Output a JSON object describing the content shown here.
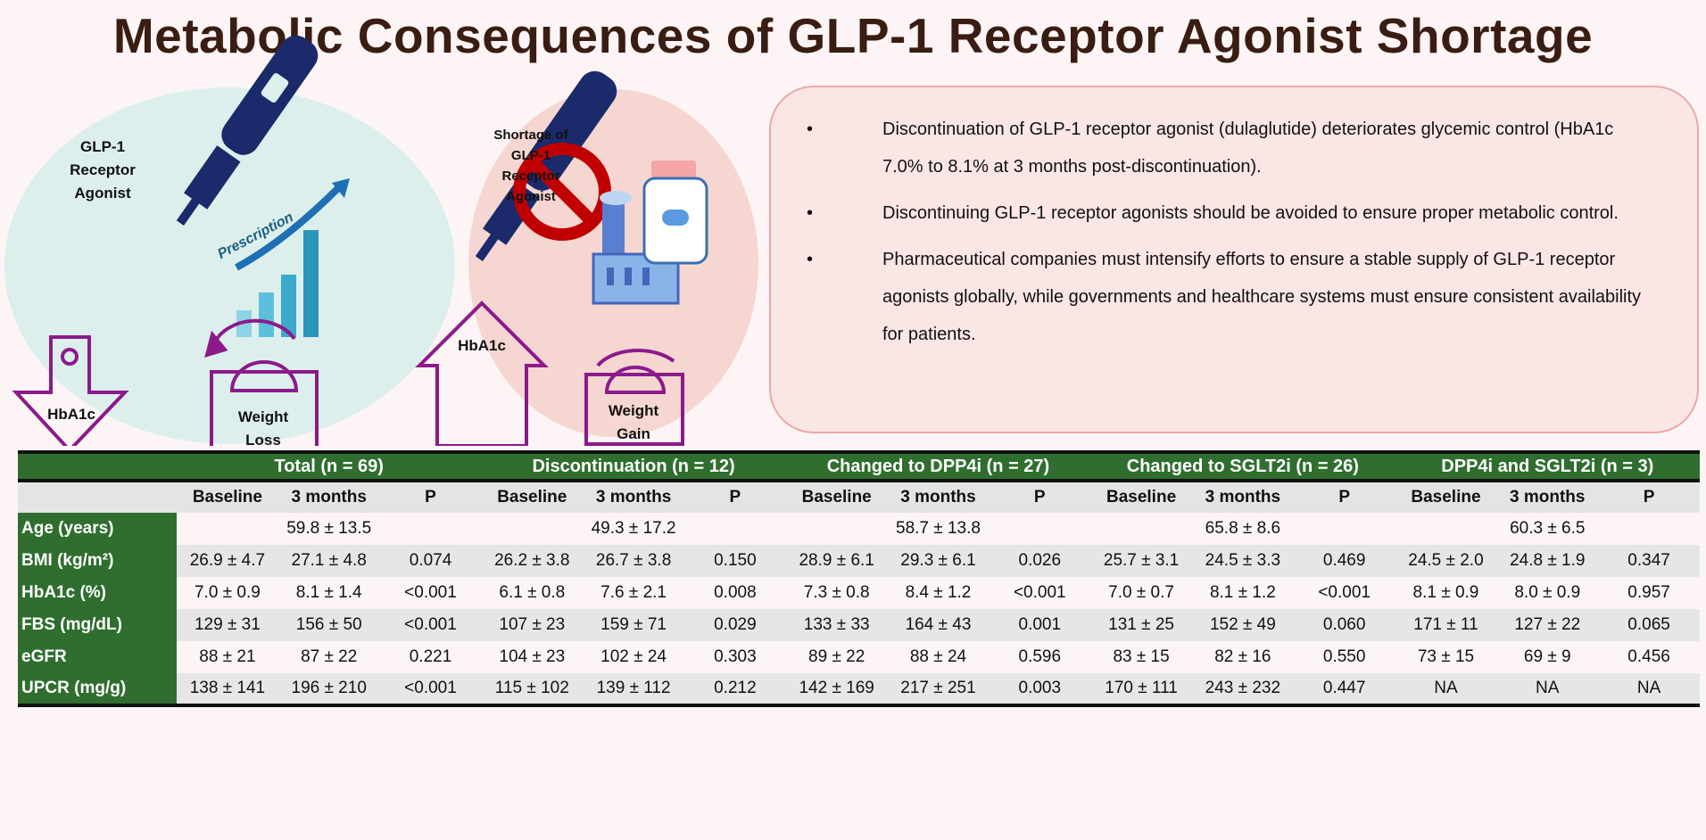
{
  "title": "Metabolic Consequences of GLP-1 Receptor Agonist Shortage",
  "left_panel": {
    "drug_label": [
      "GLP-1",
      "Receptor",
      "Agonist"
    ],
    "prescription": "Prescription",
    "hba1c": "HbA1c",
    "weight": [
      "Weight",
      "Loss"
    ]
  },
  "right_panel": {
    "drug_label": [
      "Shortage of",
      "GLP-1",
      "Receptor",
      "Agonist"
    ],
    "hba1c": "HbA1c",
    "weight": [
      "Weight",
      "Gain"
    ]
  },
  "colors": {
    "title": "#3a1d12",
    "green": "#2f6e2f",
    "purple": "#8b1a8b",
    "navy": "#1b2a6b",
    "ban": "#c00000"
  },
  "bullets": [
    "Discontinuation of GLP-1 receptor agonist (dulaglutide) deteriorates glycemic control (HbA1c 7.0% to 8.1% at 3 months post-discontinuation).",
    "Discontinuing GLP-1 receptor agonists should be avoided to ensure proper metabolic control.",
    "Pharmaceutical companies must intensify efforts to ensure a stable supply of GLP-1 receptor agonists globally, while governments and healthcare systems must ensure consistent availability for patients."
  ],
  "table": {
    "groups": [
      "Total (n = 69)",
      "Discontinuation (n = 12)",
      "Changed to DPP4i (n = 27)",
      "Changed to SGLT2i (n = 26)",
      "DPP4i and SGLT2i (n = 3)"
    ],
    "subheaders": [
      "Baseline",
      "3 months",
      "P"
    ],
    "age": {
      "label": "Age (years)",
      "values": [
        "59.8 ± 13.5",
        "49.3 ± 17.2",
        "58.7 ± 13.8",
        "65.8 ± 8.6",
        "60.3 ± 6.5"
      ]
    },
    "rows": [
      {
        "label": "BMI (kg/m²)",
        "cells": [
          "26.9 ± 4.7",
          "27.1 ± 4.8",
          "0.074",
          "26.2 ± 3.8",
          "26.7 ± 3.8",
          "0.150",
          "28.9 ± 6.1",
          "29.3 ± 6.1",
          "0.026",
          "25.7 ± 3.1",
          "24.5 ± 3.3",
          "0.469",
          "24.5 ± 2.0",
          "24.8 ± 1.9",
          "0.347"
        ]
      },
      {
        "label": "HbA1c (%)",
        "cells": [
          "7.0 ± 0.9",
          "8.1 ± 1.4",
          "<0.001",
          "6.1 ± 0.8",
          "7.6 ± 2.1",
          "0.008",
          "7.3 ± 0.8",
          "8.4 ± 1.2",
          "<0.001",
          "7.0 ± 0.7",
          "8.1 ± 1.2",
          "<0.001",
          "8.1 ± 0.9",
          "8.0 ± 0.9",
          "0.957"
        ]
      },
      {
        "label": "FBS (mg/dL)",
        "cells": [
          "129 ± 31",
          "156 ± 50",
          "<0.001",
          "107 ± 23",
          "159 ± 71",
          "0.029",
          "133 ± 33",
          "164 ± 43",
          "0.001",
          "131 ± 25",
          "152 ± 49",
          "0.060",
          "171 ± 11",
          "127 ± 22",
          "0.065"
        ]
      },
      {
        "label": "eGFR",
        "cells": [
          "88 ± 21",
          "87 ± 22",
          "0.221",
          "104 ± 23",
          "102 ± 24",
          "0.303",
          "89 ± 22",
          "88 ± 24",
          "0.596",
          "83 ± 15",
          "82 ± 16",
          "0.550",
          "73 ± 15",
          "69 ± 9",
          "0.456"
        ]
      },
      {
        "label": "UPCR (mg/g)",
        "cells": [
          "138 ± 141",
          "196 ± 210",
          "<0.001",
          "115 ± 102",
          "139 ± 112",
          "0.212",
          "142 ± 169",
          "217 ± 251",
          "0.003",
          "170 ± 111",
          "243 ± 232",
          "0.447",
          "NA",
          "NA",
          "NA"
        ]
      }
    ]
  }
}
